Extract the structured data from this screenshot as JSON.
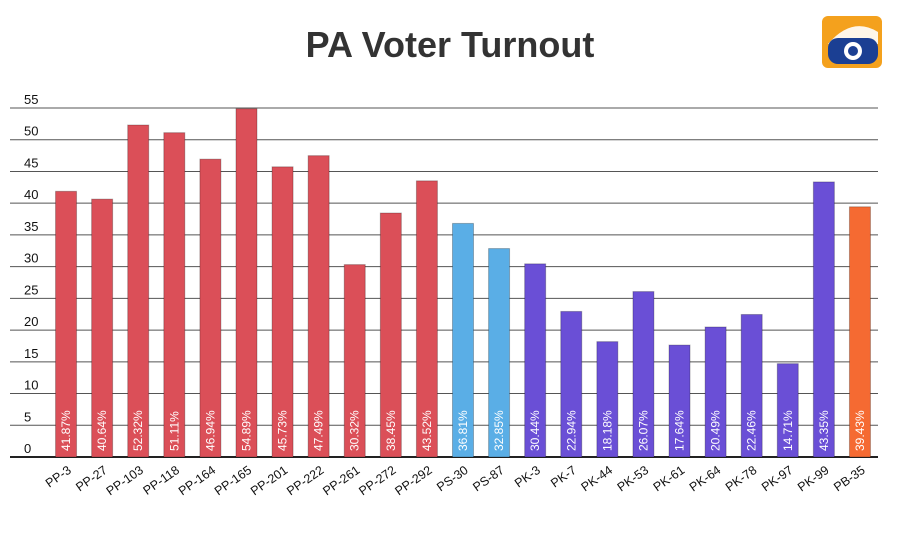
{
  "chart_data": {
    "type": "bar",
    "title": "PA Voter Turnout",
    "ylim": [
      0,
      55
    ],
    "yticks": [
      0,
      5,
      10,
      15,
      20,
      25,
      30,
      35,
      40,
      45,
      50,
      55
    ],
    "grid": true,
    "categories": [
      "PP-3",
      "PP-27",
      "PP-103",
      "PP-118",
      "PP-164",
      "PP-165",
      "PP-201",
      "PP-222",
      "PP-261",
      "PP-272",
      "PP-292",
      "PS-30",
      "PS-87",
      "PK-3",
      "PK-7",
      "PK-44",
      "PK-53",
      "PK-61",
      "PK-64",
      "PK-78",
      "PK-97",
      "PK-99",
      "PB-35"
    ],
    "values": [
      41.87,
      40.64,
      52.32,
      51.11,
      46.94,
      54.89,
      45.73,
      47.49,
      30.32,
      38.45,
      43.52,
      36.81,
      32.85,
      30.44,
      22.94,
      18.18,
      26.07,
      17.64,
      20.49,
      22.46,
      14.71,
      43.35,
      39.43
    ],
    "labels": [
      "41.87%",
      "40.64%",
      "52.32%",
      "51.11%",
      "46.94%",
      "54.89%",
      "45.73%",
      "47.49%",
      "30.32%",
      "38.45%",
      "43.52%",
      "36.81%",
      "32.85%",
      "30.44%",
      "22.94%",
      "18.18%",
      "26.07%",
      "17.64%",
      "20.49%",
      "22.46%",
      "14.71%",
      "43.35%",
      "39.43%"
    ],
    "groups": [
      "PP",
      "PP",
      "PP",
      "PP",
      "PP",
      "PP",
      "PP",
      "PP",
      "PP",
      "PP",
      "PP",
      "PS",
      "PS",
      "PK",
      "PK",
      "PK",
      "PK",
      "PK",
      "PK",
      "PK",
      "PK",
      "PK",
      "PB"
    ],
    "group_colors": {
      "PP": "#db4f58",
      "PS": "#5aaee6",
      "PK": "#6a4fd6",
      "PB": "#f56a32"
    },
    "label_color_overrides": {
      "PS": "#1a1a1a",
      "PB": "#1a1a1a"
    },
    "gridline_color": "#555555",
    "xlabel": "",
    "ylabel": ""
  },
  "logo": {
    "name": "geo-news-logo",
    "colors": {
      "orange": "#f4a11d",
      "blue": "#1b3f93"
    }
  }
}
